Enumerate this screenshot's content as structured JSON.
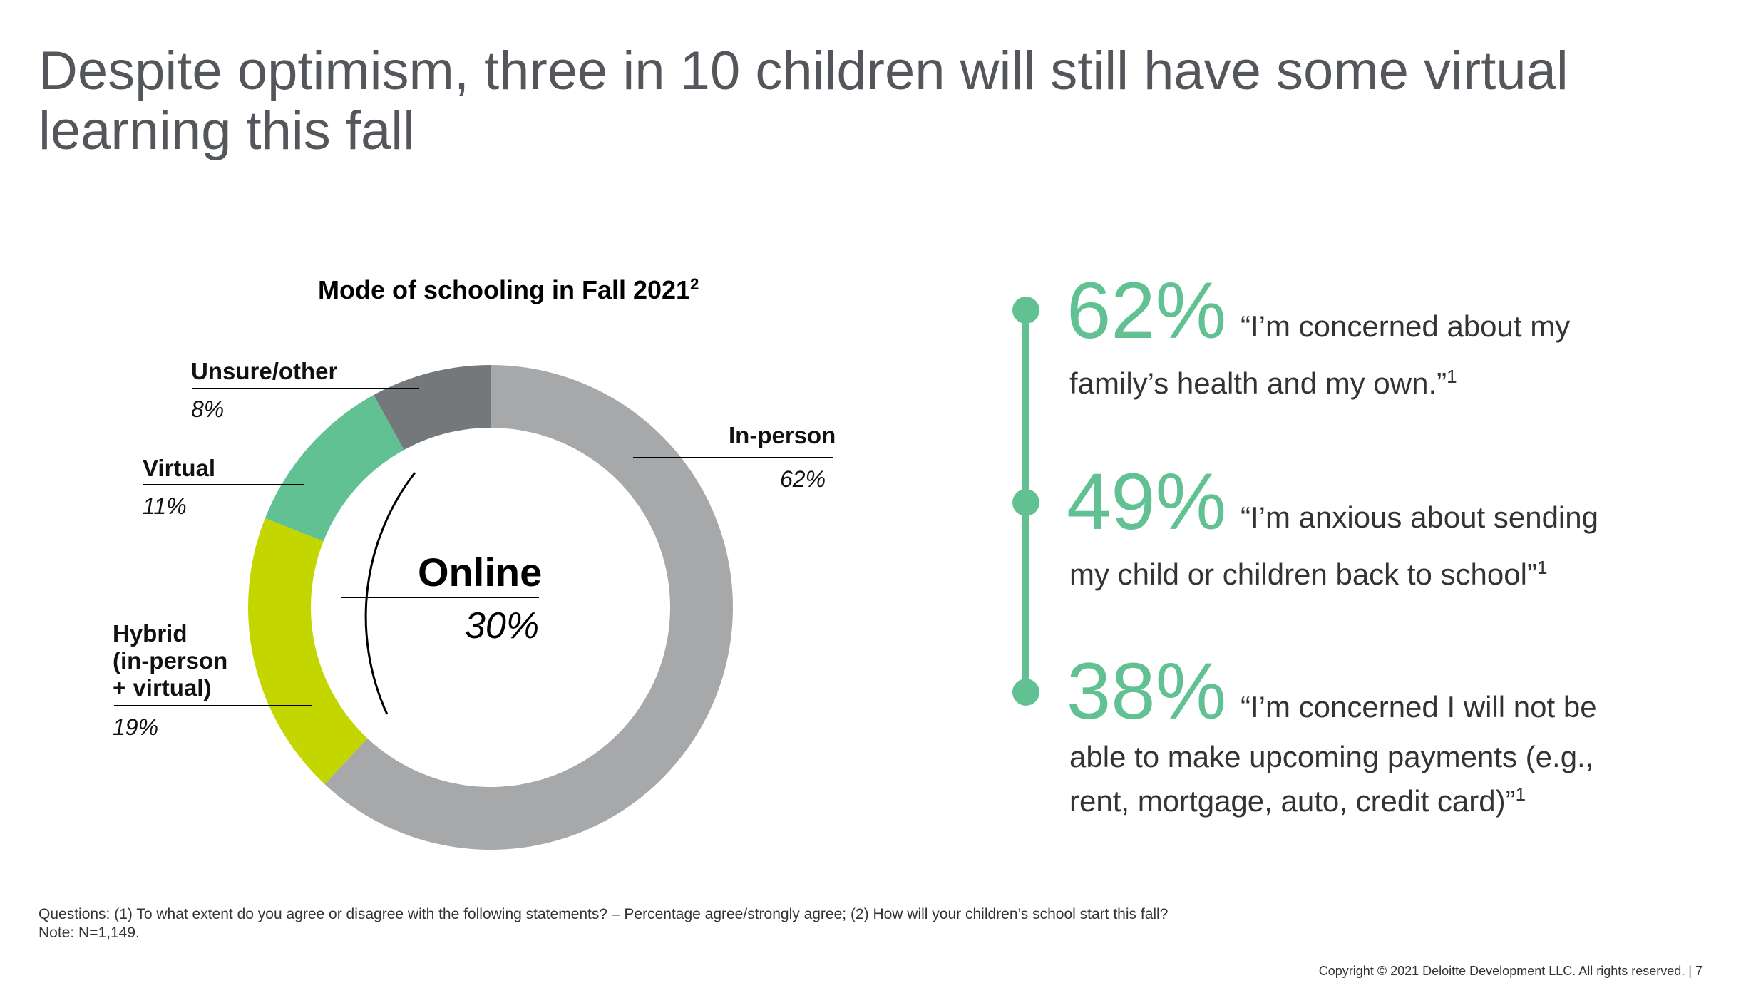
{
  "headline": "Despite optimism, three in 10 children will still have some virtual learning this fall",
  "colors": {
    "in_person": "#a7a8aa",
    "hybrid": "#c4d600",
    "virtual": "#62c192",
    "unsure": "#75787b",
    "accent": "#62c192"
  },
  "chart_data": {
    "type": "pie",
    "title": "Mode of schooling in Fall 2021",
    "title_superscript": "2",
    "unit": "%",
    "categories": [
      "In-person",
      "Hybrid (in-person + virtual)",
      "Virtual",
      "Unsure/other"
    ],
    "values": [
      62,
      19,
      11,
      8
    ],
    "value_labels": [
      "62%",
      "19%",
      "11%",
      "8%"
    ],
    "label_lines": {
      "in_person": [
        "In-person"
      ],
      "hybrid": [
        "Hybrid",
        "(in-person",
        "+ virtual)"
      ],
      "virtual": [
        "Virtual"
      ],
      "unsure": [
        "Unsure/other"
      ]
    },
    "group_annotation": {
      "label": "Online",
      "value": "30%"
    }
  },
  "stats": [
    {
      "pct": "62%",
      "line1": "“I’m concerned about my",
      "line2": "family’s health and my own.”",
      "note": "1"
    },
    {
      "pct": "49%",
      "line1": "“I’m anxious about sending",
      "line2": "my child or children back to school”",
      "note": "1"
    },
    {
      "pct": "38%",
      "line1": "“I’m concerned I will not be",
      "line2": "able to make upcoming payments (e.g., rent, mortgage, auto, credit card)”",
      "note": "1"
    }
  ],
  "footnote": {
    "questions": "Questions: (1) To what extent do you agree or disagree with the following statements? – Percentage agree/strongly agree; (2) How will your children’s school start this fall?",
    "note": "Note: N=1,149."
  },
  "copyright": "Copyright © 2021 Deloitte Development LLC. All rights reserved.  |    7"
}
